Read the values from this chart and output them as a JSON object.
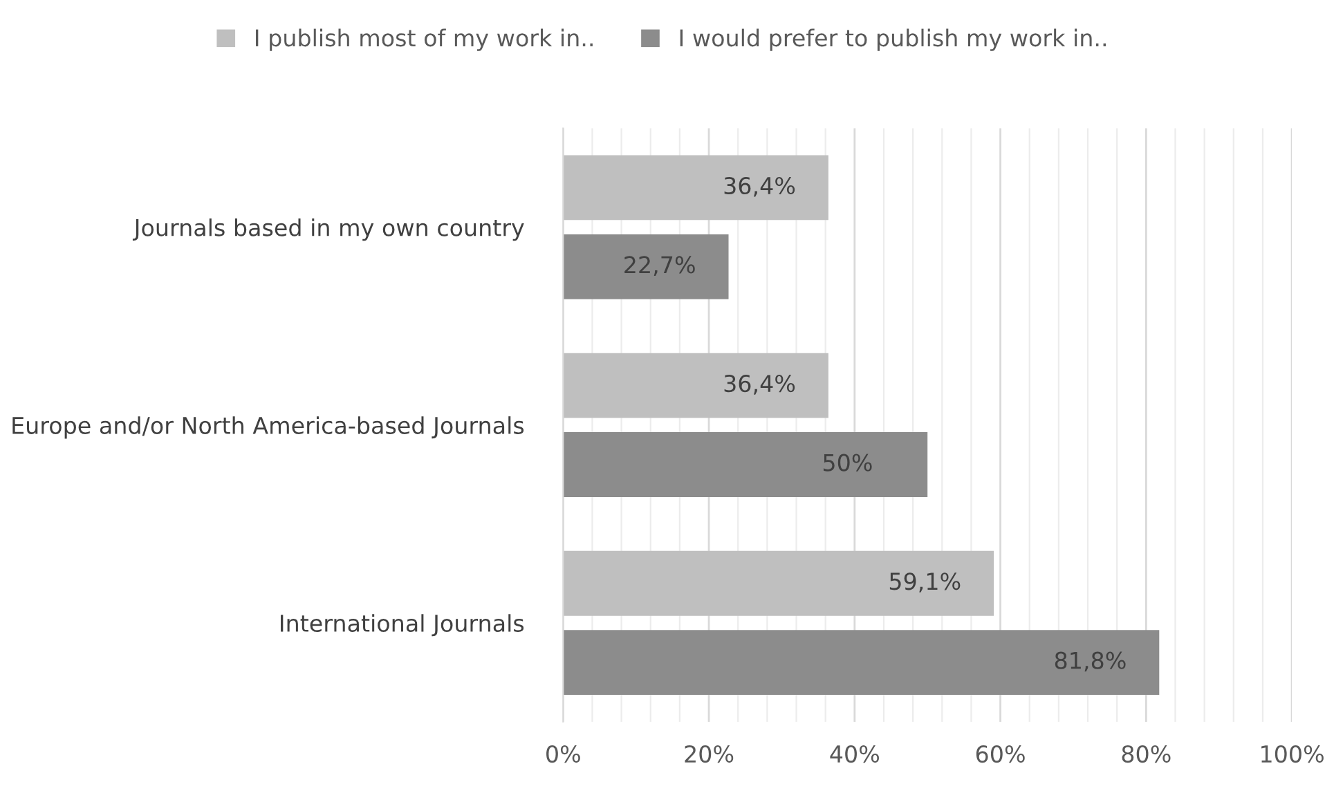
{
  "chart_data": {
    "type": "bar",
    "orientation": "horizontal",
    "categories": [
      "Journals based in my own country",
      "Europe and/or North America-based Journals",
      "International Journals"
    ],
    "series": [
      {
        "name": "I publish most of my work in..",
        "color": "#bfbfbf",
        "values": [
          36.4,
          36.4,
          59.1
        ],
        "value_labels": [
          "36,4%",
          "36,4%",
          "59,1%"
        ]
      },
      {
        "name": "I would prefer to publish my work in..",
        "color": "#8c8c8c",
        "values": [
          22.7,
          50,
          81.8
        ],
        "value_labels": [
          "22,7%",
          "50%",
          "81,8%"
        ]
      }
    ],
    "xlim": [
      0,
      100
    ],
    "xticks": [
      {
        "value": 0,
        "label": "0%"
      },
      {
        "value": 20,
        "label": "20%"
      },
      {
        "value": 40,
        "label": "40%"
      },
      {
        "value": 60,
        "label": "60%"
      },
      {
        "value": 80,
        "label": "80%"
      },
      {
        "value": 100,
        "label": "100%"
      }
    ],
    "grid": "x",
    "legend": "top"
  }
}
